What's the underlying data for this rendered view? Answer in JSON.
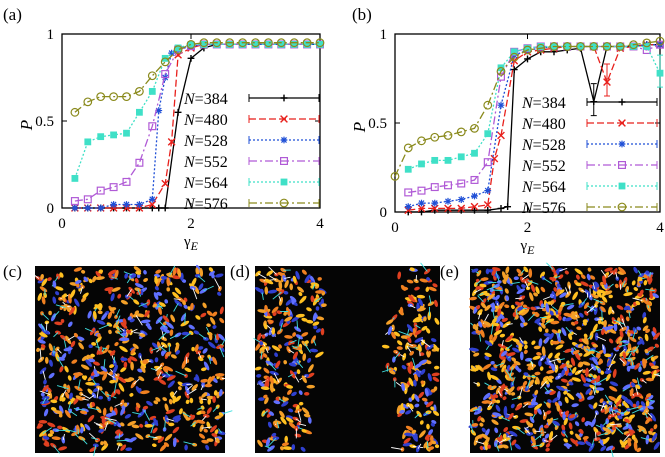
{
  "panel_labels": {
    "a": "(a)",
    "b": "(b)",
    "c": "(c)",
    "d": "(d)",
    "e": "(e)"
  },
  "legend_suffix": {
    "s384": "=384",
    "s480": "=480",
    "s528": "=528",
    "s552": "=552",
    "s564": "=564",
    "s576": "=576"
  },
  "chart_data": [
    {
      "type": "line",
      "panel": "(a)",
      "xlabel": "γE",
      "ylabel": "P",
      "xlim": [
        0,
        4
      ],
      "ylim": [
        0,
        1
      ],
      "xticks": [
        "0",
        "2",
        "4"
      ],
      "yticks": [
        "0",
        "0.5",
        "1"
      ],
      "legend_position": "right",
      "series": [
        {
          "name": "N=384",
          "color": "#000000",
          "marker": "plus",
          "dash": "",
          "x": [
            0.2,
            0.4,
            0.6,
            0.8,
            1.0,
            1.2,
            1.4,
            1.5,
            1.6,
            1.8,
            2.0,
            2.2,
            2.4,
            2.6,
            2.8,
            3.0,
            3.2,
            3.4,
            3.6,
            3.8,
            4.0
          ],
          "y": [
            0.0,
            0.0,
            0.0,
            0.0,
            0.0,
            0.0,
            0.0,
            0.0,
            0.0,
            0.55,
            0.86,
            0.92,
            0.94,
            0.94,
            0.94,
            0.94,
            0.94,
            0.94,
            0.94,
            0.94,
            0.94
          ]
        },
        {
          "name": "N=480",
          "color": "#e8201c",
          "marker": "x",
          "dash": "7,3",
          "x": [
            0.2,
            0.4,
            0.6,
            0.8,
            1.0,
            1.2,
            1.4,
            1.6,
            1.7,
            1.8,
            2.0,
            2.2,
            2.4,
            2.6,
            2.8,
            3.0,
            3.2,
            3.4,
            3.6,
            3.8,
            4.0
          ],
          "y": [
            0.0,
            0.0,
            0.0,
            0.0,
            0.0,
            0.0,
            0.02,
            0.14,
            0.38,
            0.88,
            0.92,
            0.94,
            0.94,
            0.94,
            0.94,
            0.94,
            0.94,
            0.94,
            0.94,
            0.94,
            0.94
          ]
        },
        {
          "name": "N=528",
          "color": "#1f4fd6",
          "marker": "star",
          "dash": "2,2",
          "x": [
            0.2,
            0.4,
            0.6,
            0.8,
            1.0,
            1.2,
            1.4,
            1.5,
            1.6,
            1.7,
            1.8,
            2.0,
            2.2,
            2.4,
            2.6,
            2.8,
            3.0,
            3.2,
            3.4,
            3.6,
            3.8,
            4.0
          ],
          "y": [
            0.0,
            0.0,
            0.0,
            0.02,
            0.02,
            0.02,
            0.05,
            0.56,
            0.75,
            0.89,
            0.91,
            0.93,
            0.94,
            0.94,
            0.94,
            0.94,
            0.94,
            0.94,
            0.94,
            0.94,
            0.94,
            0.94
          ]
        },
        {
          "name": "N=552",
          "color": "#b05ad6",
          "marker": "square",
          "dash": "8,3,2,3",
          "x": [
            0.2,
            0.4,
            0.6,
            0.8,
            1.0,
            1.2,
            1.4,
            1.6,
            1.8,
            2.0,
            2.2,
            2.4,
            2.6,
            2.8,
            3.0,
            3.2,
            3.4,
            3.6,
            3.8,
            4.0
          ],
          "y": [
            0.04,
            0.05,
            0.1,
            0.12,
            0.15,
            0.26,
            0.47,
            0.77,
            0.91,
            0.93,
            0.94,
            0.94,
            0.94,
            0.94,
            0.94,
            0.94,
            0.94,
            0.94,
            0.94,
            0.94
          ]
        },
        {
          "name": "N=564",
          "color": "#3fe0c7",
          "marker": "filled-square",
          "dash": "2,2",
          "x": [
            0.2,
            0.4,
            0.6,
            0.8,
            1.0,
            1.2,
            1.4,
            1.6,
            1.8,
            2.0,
            2.2,
            2.4,
            2.6,
            2.8,
            3.0,
            3.2,
            3.4,
            3.6,
            3.8,
            4.0
          ],
          "y": [
            0.17,
            0.38,
            0.41,
            0.42,
            0.43,
            0.55,
            0.67,
            0.86,
            0.92,
            0.94,
            0.94,
            0.94,
            0.94,
            0.94,
            0.94,
            0.94,
            0.94,
            0.94,
            0.94,
            0.94
          ]
        },
        {
          "name": "N=576",
          "color": "#8a8a1c",
          "marker": "circle",
          "dash": "8,3,2,3",
          "x": [
            0.2,
            0.4,
            0.6,
            0.8,
            1.0,
            1.2,
            1.4,
            1.6,
            1.8,
            2.0,
            2.2,
            2.4,
            2.6,
            2.8,
            3.0,
            3.2,
            3.4,
            3.6,
            3.8,
            4.0
          ],
          "y": [
            0.55,
            0.61,
            0.64,
            0.64,
            0.64,
            0.67,
            0.76,
            0.84,
            0.91,
            0.94,
            0.95,
            0.95,
            0.95,
            0.95,
            0.95,
            0.95,
            0.95,
            0.95,
            0.95,
            0.95
          ]
        }
      ]
    },
    {
      "type": "line",
      "panel": "(b)",
      "xlabel": "γE",
      "ylabel": "P",
      "xlim": [
        0,
        4
      ],
      "ylim": [
        0,
        1
      ],
      "xticks": [
        "0",
        "2",
        "4"
      ],
      "yticks": [
        "0",
        "0.5",
        "1"
      ],
      "legend_position": "right",
      "series": [
        {
          "name": "N=384",
          "color": "#000000",
          "marker": "plus",
          "dash": "",
          "x": [
            0.2,
            0.4,
            0.6,
            0.8,
            1.0,
            1.2,
            1.4,
            1.6,
            1.7,
            1.8,
            2.0,
            2.2,
            2.4,
            2.6,
            2.8,
            3.0,
            3.2,
            3.4,
            3.6,
            3.8,
            4.0
          ],
          "y": [
            0.0,
            0.0,
            0.01,
            0.01,
            0.01,
            0.01,
            0.01,
            0.02,
            0.03,
            0.8,
            0.86,
            0.9,
            0.9,
            0.91,
            0.92,
            0.62,
            0.93,
            0.93,
            0.93,
            0.94,
            0.94
          ]
        },
        {
          "name": "N=480",
          "color": "#e8201c",
          "marker": "x",
          "dash": "7,3",
          "x": [
            0.2,
            0.4,
            0.6,
            0.8,
            1.0,
            1.2,
            1.4,
            1.5,
            1.6,
            1.8,
            2.0,
            2.2,
            2.4,
            2.6,
            2.8,
            3.0,
            3.2,
            3.4,
            3.6,
            3.8,
            4.0
          ],
          "y": [
            0.01,
            0.02,
            0.02,
            0.02,
            0.02,
            0.03,
            0.04,
            0.3,
            0.43,
            0.85,
            0.9,
            0.91,
            0.92,
            0.93,
            0.93,
            0.93,
            0.73,
            0.92,
            0.93,
            0.94,
            0.94
          ]
        },
        {
          "name": "N=528",
          "color": "#1f4fd6",
          "marker": "star",
          "dash": "2,2",
          "x": [
            0.2,
            0.4,
            0.6,
            0.8,
            1.0,
            1.2,
            1.4,
            1.6,
            1.8,
            2.0,
            2.2,
            2.4,
            2.6,
            2.8,
            3.0,
            3.2,
            3.4,
            3.6,
            3.8,
            4.0
          ],
          "y": [
            0.03,
            0.05,
            0.05,
            0.06,
            0.07,
            0.09,
            0.12,
            0.6,
            0.88,
            0.91,
            0.92,
            0.93,
            0.93,
            0.93,
            0.93,
            0.93,
            0.93,
            0.93,
            0.94,
            0.94
          ]
        },
        {
          "name": "N=552",
          "color": "#b05ad6",
          "marker": "square",
          "dash": "8,3,2,3",
          "x": [
            0.2,
            0.4,
            0.6,
            0.8,
            1.0,
            1.2,
            1.4,
            1.6,
            1.8,
            2.0,
            2.2,
            2.4,
            2.6,
            2.8,
            3.0,
            3.2,
            3.4,
            3.6,
            3.8,
            4.0
          ],
          "y": [
            0.11,
            0.12,
            0.14,
            0.15,
            0.16,
            0.18,
            0.28,
            0.76,
            0.9,
            0.92,
            0.93,
            0.93,
            0.93,
            0.93,
            0.93,
            0.93,
            0.93,
            0.93,
            0.91,
            0.94
          ]
        },
        {
          "name": "N=564",
          "color": "#3fe0c7",
          "marker": "filled-square",
          "dash": "2,2",
          "x": [
            0.2,
            0.4,
            0.6,
            0.8,
            1.0,
            1.2,
            1.4,
            1.6,
            1.8,
            2.0,
            2.2,
            2.4,
            2.6,
            2.8,
            3.0,
            3.2,
            3.4,
            3.6,
            3.8,
            4.0
          ],
          "y": [
            0.24,
            0.27,
            0.29,
            0.29,
            0.31,
            0.33,
            0.44,
            0.81,
            0.9,
            0.92,
            0.93,
            0.93,
            0.93,
            0.93,
            0.93,
            0.93,
            0.93,
            0.93,
            0.93,
            0.78
          ]
        },
        {
          "name": "N=576",
          "color": "#8a8a1c",
          "marker": "circle",
          "dash": "8,3,2,3",
          "x": [
            0.0,
            0.2,
            0.4,
            0.6,
            0.8,
            1.0,
            1.2,
            1.4,
            1.6,
            1.8,
            2.0,
            2.2,
            2.4,
            2.6,
            2.8,
            3.0,
            3.2,
            3.4,
            3.6,
            3.8,
            4.0
          ],
          "y": [
            0.2,
            0.36,
            0.4,
            0.42,
            0.43,
            0.45,
            0.47,
            0.6,
            0.79,
            0.87,
            0.91,
            0.92,
            0.93,
            0.93,
            0.93,
            0.93,
            0.93,
            0.93,
            0.94,
            0.95,
            0.96
          ]
        }
      ]
    }
  ],
  "snapshots": [
    {
      "panel": "(c)",
      "pattern": "dispersed"
    },
    {
      "panel": "(d)",
      "pattern": "central-void"
    },
    {
      "panel": "(e)",
      "pattern": "dense-dispersed"
    }
  ],
  "colors": {
    "snapshot_background": "#050505",
    "particle_palette": [
      "#f08020",
      "#ffc020",
      "#e04020",
      "#6070ff",
      "#3040d0",
      "#f4a028"
    ],
    "arrow": "#40e0e0",
    "streak": "#ffffff"
  }
}
